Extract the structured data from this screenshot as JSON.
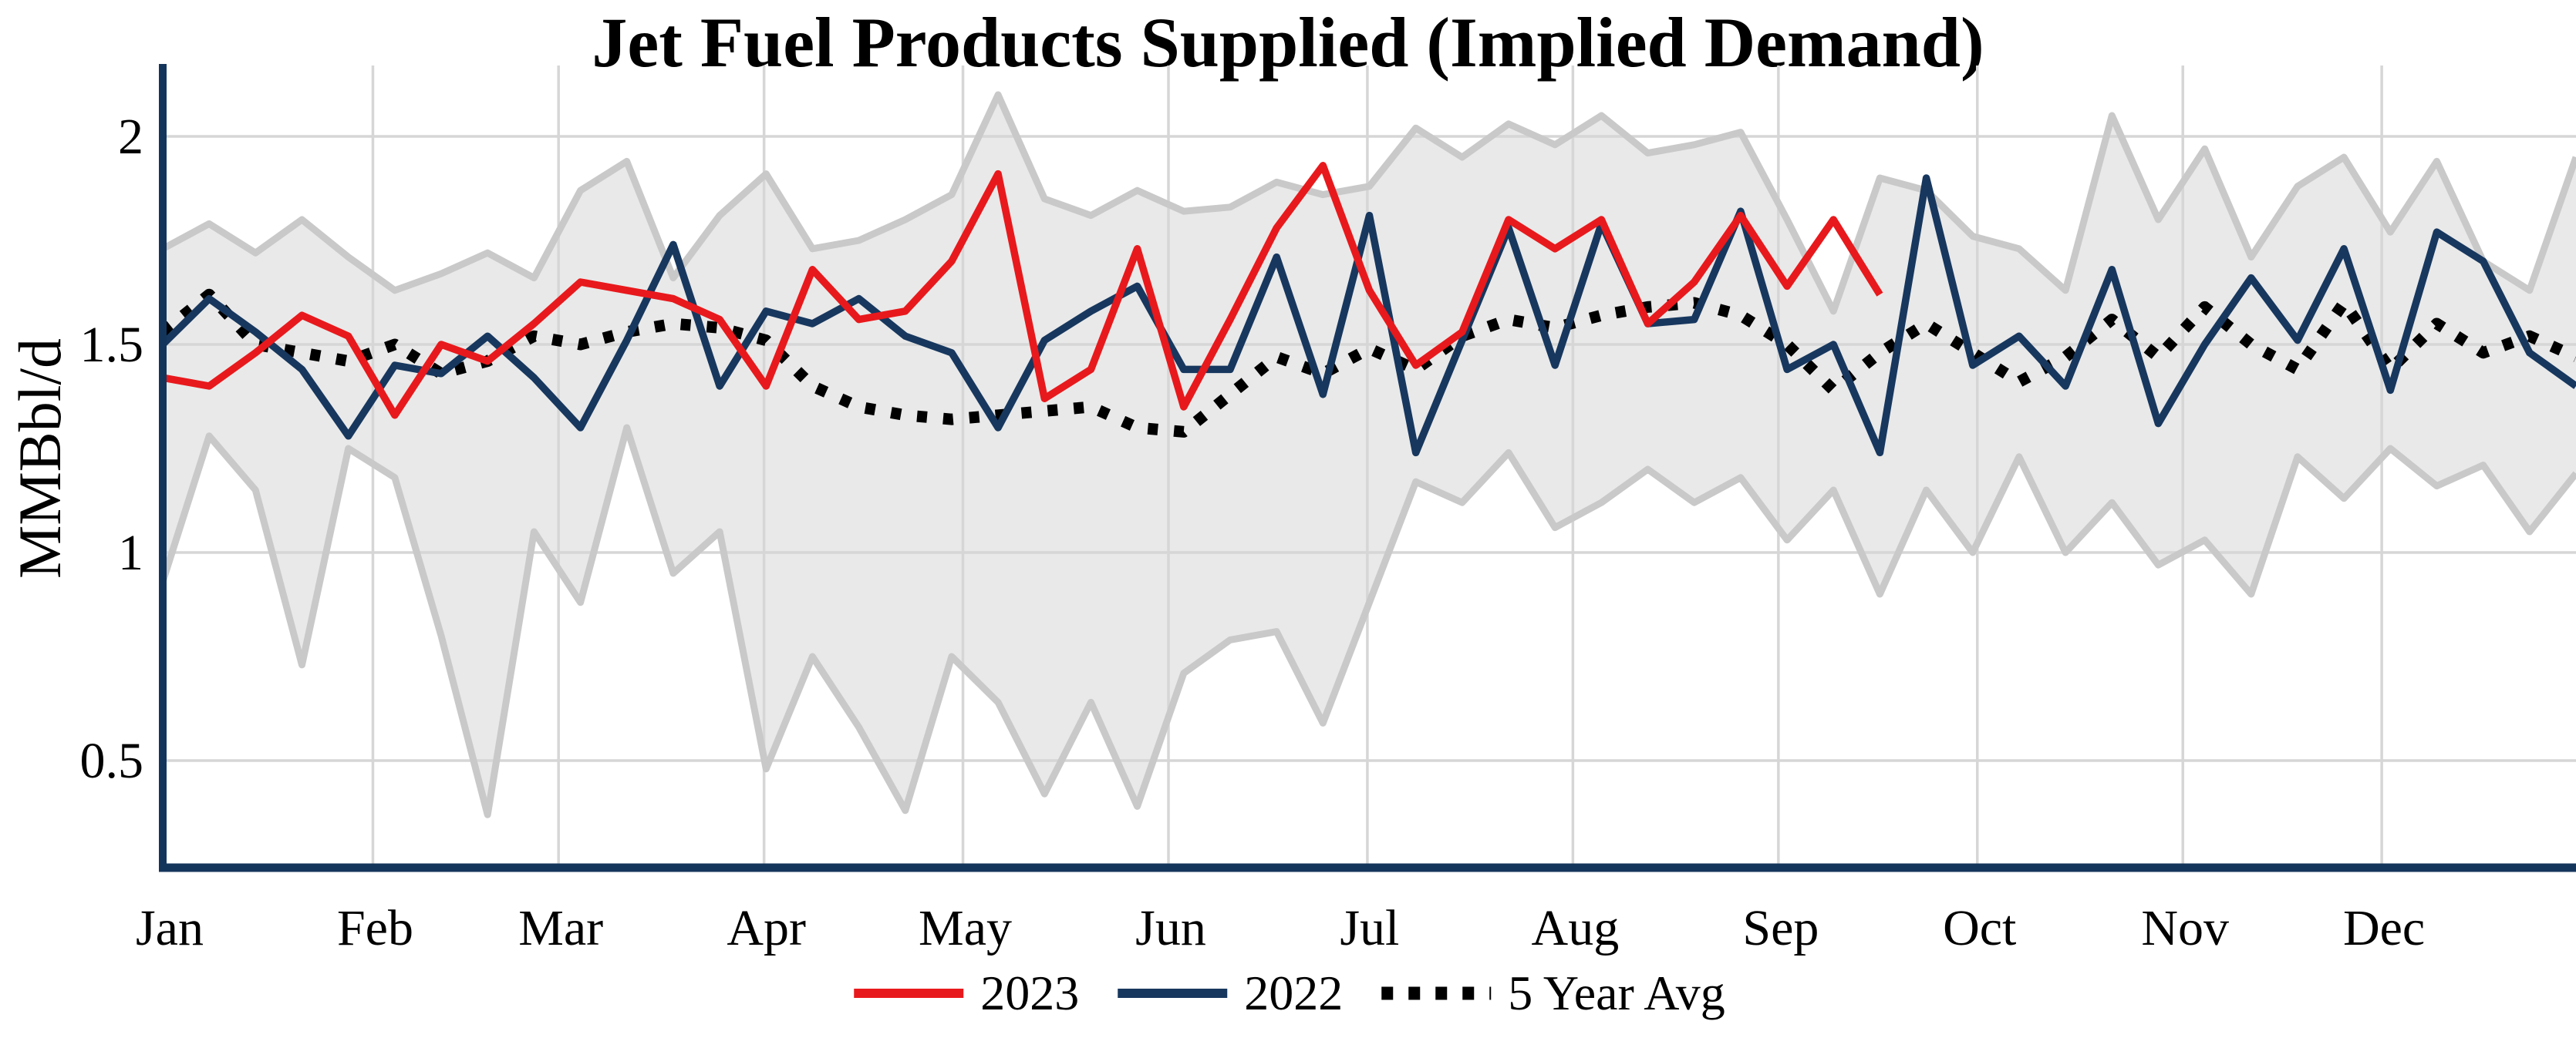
{
  "title": "Jet Fuel Products Supplied (Implied Demand)",
  "y_axis": {
    "label": "MMBbl/d",
    "tick_labels": [
      "2",
      "1.5",
      "1",
      "0.5"
    ],
    "tick_values": [
      2,
      1.5,
      1,
      0.5
    ]
  },
  "x_axis": {
    "month_labels": [
      "Jan",
      "Feb",
      "Mar",
      "Apr",
      "May",
      "Jun",
      "Jul",
      "Aug",
      "Sep",
      "Oct",
      "Nov",
      "Dec"
    ]
  },
  "legend_entries": [
    "2023",
    "2022",
    "5 Year Avg"
  ],
  "colors": {
    "red_2023": "#e8191c",
    "navy_2022": "#17375e",
    "avg_black": "#000000",
    "band_fill": "#e9e9e9",
    "band_edge": "#c9c9c9",
    "gridline": "#d6d6d6",
    "spine": "#14355b"
  },
  "chart_data": {
    "type": "line",
    "title": "Jet Fuel Products Supplied (Implied Demand)",
    "xlabel": "",
    "ylabel": "MMBbl/d",
    "x_unit": "week-of-year (weekly data, Jan-Dec)",
    "ylim": [
      0.24,
      2.17
    ],
    "yticks": [
      0.5,
      1,
      1.5,
      2
    ],
    "grid": true,
    "legend_position": "bottom-center",
    "series": [
      {
        "name": "2023",
        "color": "#e8191c",
        "style": "solid",
        "values": [
          1.42,
          1.4,
          1.48,
          1.57,
          1.52,
          1.33,
          1.5,
          1.46,
          1.55,
          1.65,
          1.63,
          1.61,
          1.56,
          1.4,
          1.68,
          1.56,
          1.58,
          1.7,
          1.91,
          1.37,
          1.44,
          1.73,
          1.35,
          1.56,
          1.78,
          1.93,
          1.63,
          1.45,
          1.53,
          1.8,
          1.73,
          1.8,
          1.55,
          1.65,
          1.81,
          1.64,
          1.8,
          1.62
        ]
      },
      {
        "name": "2022",
        "color": "#17375e",
        "style": "solid",
        "values": [
          1.5,
          1.61,
          1.53,
          1.44,
          1.28,
          1.45,
          1.43,
          1.52,
          1.42,
          1.3,
          1.51,
          1.74,
          1.4,
          1.58,
          1.55,
          1.61,
          1.52,
          1.48,
          1.3,
          1.51,
          1.58,
          1.64,
          1.44,
          1.44,
          1.71,
          1.38,
          1.81,
          1.24,
          1.51,
          1.78,
          1.45,
          1.79,
          1.55,
          1.56,
          1.82,
          1.44,
          1.5,
          1.24,
          1.9,
          1.45,
          1.52,
          1.4,
          1.68,
          1.31,
          1.5,
          1.66,
          1.51,
          1.73,
          1.39,
          1.77,
          1.7,
          1.48,
          1.4
        ]
      },
      {
        "name": "5 Year Avg",
        "color": "#000000",
        "style": "dotted",
        "values": [
          1.53,
          1.62,
          1.5,
          1.48,
          1.46,
          1.5,
          1.43,
          1.46,
          1.52,
          1.5,
          1.53,
          1.55,
          1.54,
          1.51,
          1.4,
          1.35,
          1.33,
          1.32,
          1.33,
          1.34,
          1.35,
          1.3,
          1.29,
          1.38,
          1.47,
          1.43,
          1.49,
          1.44,
          1.52,
          1.56,
          1.54,
          1.57,
          1.59,
          1.6,
          1.57,
          1.5,
          1.39,
          1.48,
          1.55,
          1.48,
          1.41,
          1.47,
          1.56,
          1.47,
          1.59,
          1.5,
          1.44,
          1.6,
          1.44,
          1.55,
          1.48,
          1.52,
          1.47
        ]
      }
    ],
    "band": {
      "name": "5-year min/max range",
      "fill": "#e9e9e9",
      "edge": "#c9c9c9",
      "upper": [
        1.73,
        1.79,
        1.72,
        1.8,
        1.71,
        1.63,
        1.67,
        1.72,
        1.66,
        1.87,
        1.94,
        1.66,
        1.81,
        1.91,
        1.73,
        1.75,
        1.8,
        1.86,
        2.1,
        1.85,
        1.81,
        1.87,
        1.82,
        1.83,
        1.89,
        1.86,
        1.88,
        2.02,
        1.95,
        2.03,
        1.98,
        2.05,
        1.96,
        1.98,
        2.01,
        1.8,
        1.58,
        1.9,
        1.87,
        1.76,
        1.73,
        1.63,
        2.05,
        1.8,
        1.97,
        1.71,
        1.88,
        1.95,
        1.77,
        1.94,
        1.7,
        1.63,
        1.95
      ],
      "lower": [
        0.93,
        1.28,
        1.15,
        0.73,
        1.25,
        1.18,
        0.8,
        0.37,
        1.05,
        0.88,
        1.3,
        0.95,
        1.05,
        0.48,
        0.75,
        0.58,
        0.38,
        0.75,
        0.64,
        0.42,
        0.64,
        0.39,
        0.71,
        0.79,
        0.81,
        0.59,
        0.88,
        1.17,
        1.12,
        1.24,
        1.06,
        1.12,
        1.2,
        1.12,
        1.18,
        1.03,
        1.15,
        0.9,
        1.15,
        1.0,
        1.23,
        1.0,
        1.12,
        0.97,
        1.03,
        0.9,
        1.23,
        1.13,
        1.25,
        1.16,
        1.21,
        1.05,
        1.19
      ]
    }
  }
}
